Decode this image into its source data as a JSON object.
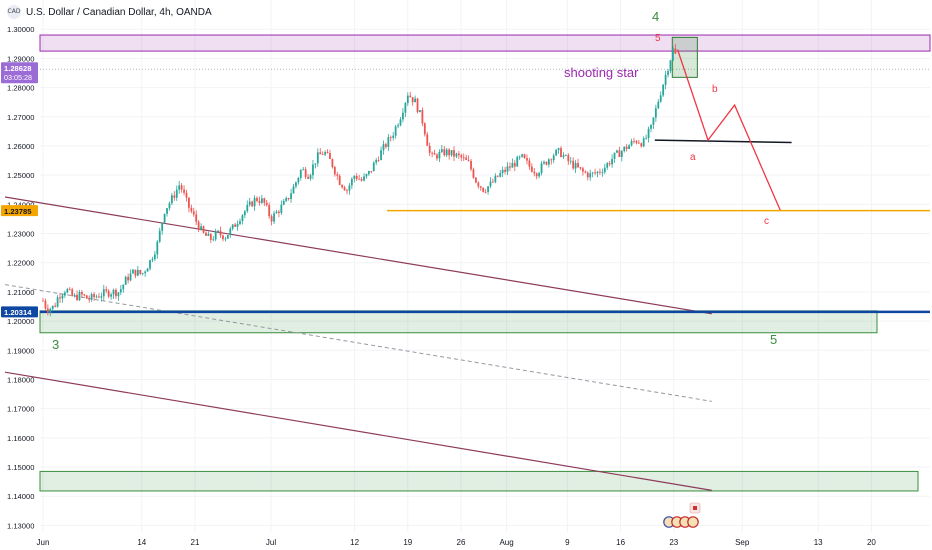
{
  "header": {
    "symbol_badge": "CAD",
    "title": "U.S. Dollar / Canadian Dollar, 4h, OANDA"
  },
  "colors": {
    "bull": "#26a69a",
    "bear": "#ef5350",
    "channel": "#8e3b5b",
    "purple_zone": "#9c27b0",
    "green_zone": "#388e3c",
    "orange_line": "#f0a800",
    "blue_line": "#0d47a1",
    "forecast": "#f23645",
    "wave_labels": "#388e3c",
    "annotation": "#9c27b0"
  },
  "price_tags": {
    "current_price": "1.28628",
    "countdown": "03:05:28",
    "support_level": "1.23785",
    "blue_level": "1.20314"
  },
  "chart_data": {
    "type": "candlestick",
    "title": "U.S. Dollar / Canadian Dollar, 4h, OANDA",
    "y_axis": {
      "min": 1.125,
      "max": 1.31,
      "ticks": [
        "1.13000",
        "1.14000",
        "1.15000",
        "1.16000",
        "1.17000",
        "1.18000",
        "1.19000",
        "1.20000",
        "1.21000",
        "1.22000",
        "1.23000",
        "1.24000",
        "1.25000",
        "1.26000",
        "1.27000",
        "1.28000",
        "1.29000",
        "1.30000"
      ]
    },
    "x_axis": {
      "ticks": [
        "Jun",
        "14",
        "21",
        "Jul",
        "12",
        "19",
        "26",
        "Aug",
        "9",
        "16",
        "23",
        "Sep",
        "13",
        "20"
      ],
      "tick_times": [
        0,
        13,
        20,
        30,
        41,
        48,
        55,
        61,
        69,
        76,
        83,
        92,
        102,
        109
      ]
    },
    "price_path": [
      [
        0,
        1.207
      ],
      [
        0.5,
        1.204
      ],
      [
        1.5,
        1.205
      ],
      [
        2,
        1.2085
      ],
      [
        3,
        1.211
      ],
      [
        4,
        1.208
      ],
      [
        5,
        1.209
      ],
      [
        6,
        1.2075
      ],
      [
        7,
        1.2085
      ],
      [
        8,
        1.2095
      ],
      [
        9,
        1.21
      ],
      [
        10,
        1.21
      ],
      [
        11,
        1.2145
      ],
      [
        12,
        1.217
      ],
      [
        13,
        1.216
      ],
      [
        14,
        1.22
      ],
      [
        15,
        1.226
      ],
      [
        16,
        1.238
      ],
      [
        17,
        1.242
      ],
      [
        18,
        1.247
      ],
      [
        19,
        1.24
      ],
      [
        20,
        1.235
      ],
      [
        21,
        1.23
      ],
      [
        22,
        1.228
      ],
      [
        23,
        1.23
      ],
      [
        24,
        1.229
      ],
      [
        25,
        1.232
      ],
      [
        26,
        1.236
      ],
      [
        27,
        1.239
      ],
      [
        28,
        1.242
      ],
      [
        29,
        1.241
      ],
      [
        30,
        1.235
      ],
      [
        31,
        1.238
      ],
      [
        32,
        1.241
      ],
      [
        33,
        1.246
      ],
      [
        34,
        1.252
      ],
      [
        35,
        1.25
      ],
      [
        36,
        1.256
      ],
      [
        37,
        1.258
      ],
      [
        38,
        1.254
      ],
      [
        39,
        1.248
      ],
      [
        40,
        1.245
      ],
      [
        41,
        1.25
      ],
      [
        42,
        1.248
      ],
      [
        43,
        1.251
      ],
      [
        44,
        1.256
      ],
      [
        45,
        1.26
      ],
      [
        46,
        1.264
      ],
      [
        47,
        1.27
      ],
      [
        48,
        1.278
      ],
      [
        49,
        1.275
      ],
      [
        50,
        1.268
      ],
      [
        51,
        1.256
      ],
      [
        52,
        1.257
      ],
      [
        53,
        1.258
      ],
      [
        54,
        1.257
      ],
      [
        55,
        1.256
      ],
      [
        56,
        1.254
      ],
      [
        57,
        1.248
      ],
      [
        58,
        1.245
      ],
      [
        59,
        1.247
      ],
      [
        60,
        1.25
      ],
      [
        61,
        1.252
      ],
      [
        62,
        1.254
      ],
      [
        63,
        1.256
      ],
      [
        64,
        1.253
      ],
      [
        65,
        1.251
      ],
      [
        66,
        1.254
      ],
      [
        67,
        1.257
      ],
      [
        68,
        1.258
      ],
      [
        69,
        1.255
      ],
      [
        70,
        1.253
      ],
      [
        71,
        1.251
      ],
      [
        72,
        1.25
      ],
      [
        73,
        1.251
      ],
      [
        74,
        1.253
      ],
      [
        75,
        1.256
      ],
      [
        76,
        1.258
      ],
      [
        77,
        1.26
      ],
      [
        78,
        1.262
      ],
      [
        79,
        1.261
      ],
      [
        80,
        1.266
      ],
      [
        81,
        1.276
      ],
      [
        82,
        1.285
      ],
      [
        83,
        1.294
      ],
      [
        83.5,
        1.287
      ]
    ],
    "levels": {
      "purple_zone": [
        1.2925,
        1.298
      ],
      "green_zone_upper": [
        1.196,
        1.2035
      ],
      "green_zone_lower": [
        1.1418,
        1.1485
      ],
      "orange_support": 1.23785,
      "blue_line": 1.20314,
      "current_price": 1.28628
    },
    "annotations": {
      "shooting_star_label": "shooting star",
      "wave_4": "4",
      "wave_5_top": "5",
      "wave_3": "3",
      "wave_5_bottom": "5",
      "forecast_a": "a",
      "forecast_b": "b",
      "forecast_c": "c"
    },
    "forecast_path": [
      [
        83.5,
        1.293
      ],
      [
        87.5,
        1.262
      ],
      [
        91,
        1.274
      ],
      [
        97,
        1.238
      ]
    ]
  }
}
